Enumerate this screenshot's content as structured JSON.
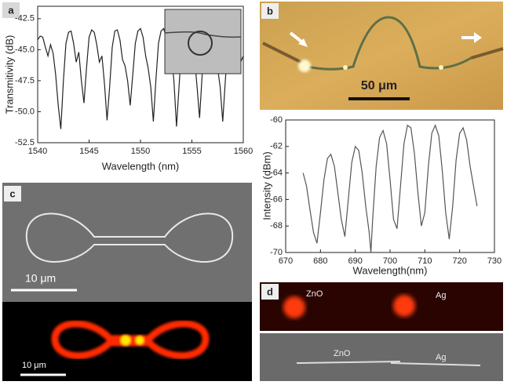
{
  "chart_data": [
    {
      "type": "line",
      "xlabel": "Wavelength (nm)",
      "ylabel": "Transmitivity (dB)",
      "color": "#222222",
      "xlim": [
        1540,
        1560
      ],
      "ylim": [
        -52.5,
        -41.5
      ],
      "xticks": [
        1540,
        1545,
        1550,
        1555,
        1560
      ],
      "yticks": [
        -52.5,
        {
          "value": -50,
          "label": "-50.0"
        },
        -47.5,
        {
          "value": -45,
          "label": "-45.0"
        },
        -42.5
      ],
      "x": [
        1540,
        1540.25,
        1540.5,
        1540.75,
        1541,
        1541.25,
        1541.5,
        1541.75,
        1542,
        1542.25,
        1542.5,
        1542.75,
        1543,
        1543.25,
        1543.5,
        1543.75,
        1544,
        1544.25,
        1544.5,
        1544.75,
        1545,
        1545.25,
        1545.5,
        1545.75,
        1546,
        1546.25,
        1546.5,
        1546.75,
        1547,
        1547.25,
        1547.5,
        1547.75,
        1548,
        1548.25,
        1548.5,
        1548.75,
        1549,
        1549.25,
        1549.5,
        1549.75,
        1550,
        1550.25,
        1550.5,
        1550.75,
        1551,
        1551.25,
        1551.5,
        1551.75,
        1552,
        1552.25,
        1552.5,
        1552.75,
        1553,
        1553.25,
        1553.5,
        1553.75,
        1554,
        1554.25,
        1554.5,
        1554.75,
        1555,
        1555.25,
        1555.5,
        1555.75,
        1556,
        1556.25,
        1556.5,
        1556.75,
        1557,
        1557.25,
        1557.5,
        1557.75,
        1558,
        1558.25,
        1558.5,
        1558.75,
        1559,
        1559.25,
        1559.5,
        1559.75,
        1560
      ],
      "values": [
        -44.2,
        -43.9,
        -44.0,
        -44.8,
        -45.5,
        -44.6,
        -45.3,
        -47.0,
        -49.5,
        -51.4,
        -47.5,
        -44.5,
        -43.6,
        -43.5,
        -44.5,
        -46.0,
        -45.2,
        -47.5,
        -49.3,
        -46.5,
        -44.0,
        -43.4,
        -43.6,
        -44.6,
        -46.0,
        -45.5,
        -47.8,
        -50.7,
        -48.0,
        -44.8,
        -43.5,
        -43.4,
        -44.2,
        -45.8,
        -46.3,
        -47.5,
        -49.5,
        -47.0,
        -44.5,
        -43.5,
        -43.3,
        -44.0,
        -45.5,
        -46.5,
        -48.0,
        -50.8,
        -47.5,
        -44.5,
        -43.5,
        -43.3,
        -44.0,
        -45.6,
        -45.4,
        -47.5,
        -51.2,
        -48.0,
        -44.6,
        -43.4,
        -43.2,
        -44.3,
        -46.0,
        -45.6,
        -48.0,
        -50.5,
        -47.0,
        -44.3,
        -43.3,
        -43.3,
        -44.2,
        -45.8,
        -46.5,
        -48.0,
        -50.8,
        -47.5,
        -44.5,
        -43.6,
        -43.5,
        -44.2,
        -45.5,
        -46.0,
        -45.5
      ]
    },
    {
      "type": "line",
      "xlabel": "Wavelength(nm)",
      "ylabel": "Intensity (dBm)",
      "color": "#555555",
      "xlim": [
        670,
        730
      ],
      "ylim": [
        -70,
        -60
      ],
      "xticks": [
        670,
        680,
        690,
        700,
        710,
        720,
        730
      ],
      "yticks": [
        -70,
        -68,
        -66,
        -64,
        -62,
        -60
      ],
      "x": [
        675,
        676,
        677,
        678,
        679,
        680,
        681,
        682,
        683,
        684,
        685,
        686,
        687,
        688,
        689,
        690,
        691,
        692,
        693,
        694,
        694.5,
        695,
        696,
        697,
        698,
        699,
        700,
        701,
        702,
        703,
        704,
        705,
        706,
        707,
        708,
        709,
        710,
        711,
        712,
        713,
        714,
        715,
        716,
        717,
        718,
        719,
        720,
        721,
        722,
        723,
        724,
        725
      ],
      "values": [
        -64.0,
        -65.0,
        -66.8,
        -68.5,
        -69.3,
        -67.0,
        -64.5,
        -62.9,
        -62.6,
        -63.5,
        -65.5,
        -67.5,
        -68.8,
        -66.0,
        -63.2,
        -62.0,
        -62.3,
        -64.0,
        -66.5,
        -68.5,
        -70.0,
        -67.5,
        -63.5,
        -61.3,
        -60.8,
        -61.8,
        -64.5,
        -67.5,
        -68.2,
        -65.0,
        -61.8,
        -60.4,
        -60.6,
        -62.5,
        -65.5,
        -68.0,
        -67.0,
        -63.5,
        -61.0,
        -60.4,
        -61.2,
        -63.8,
        -67.0,
        -69.0,
        -66.5,
        -63.0,
        -61.0,
        -60.6,
        -61.5,
        -63.5,
        -65.0,
        -66.5
      ]
    }
  ],
  "panel_labels": [
    "a",
    "b",
    "c",
    "d"
  ],
  "annotations": {
    "b_scale": "50 μm",
    "c_scale_sem": "10 μm",
    "c_scale_glow": "10 μm",
    "d_top": [
      "ZnO",
      "Ag"
    ],
    "d_bottom": [
      "ZnO",
      "Ag"
    ]
  }
}
